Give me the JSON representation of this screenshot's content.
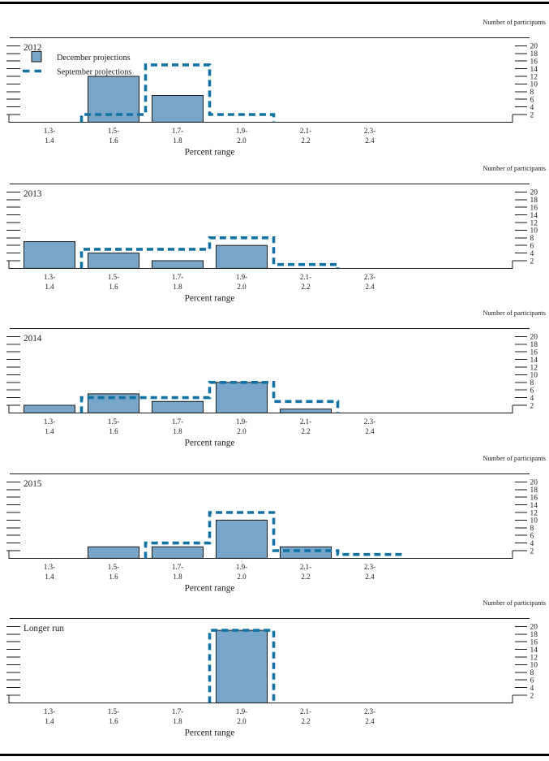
{
  "page": {
    "y_axis_title": "Number of participants",
    "x_axis_title": "Percent range",
    "legend": {
      "december_label": "December projections",
      "september_label": "September projections"
    },
    "colors": {
      "bar_fill": "#77a6ca",
      "bar_border": "#1a1a1a",
      "september_line": "#1173a5",
      "axis": "#1a1a1a",
      "text": "#1a1a1a",
      "rule": "#000000"
    },
    "y_ticks": [
      2,
      4,
      6,
      8,
      10,
      12,
      14,
      16,
      18,
      20
    ],
    "x_tick_labels": [
      [
        "1.3-",
        "1.4"
      ],
      [
        "1.5-",
        "1.6"
      ],
      [
        "1.7-",
        "1.8"
      ],
      [
        "1.9-",
        "2.0"
      ],
      [
        "2.1-",
        "2.2"
      ],
      [
        "2.3-",
        "2.4"
      ]
    ]
  },
  "chart_data": [
    {
      "type": "bar",
      "title": "2012",
      "categories": [
        "1.3-1.4",
        "1.5-1.6",
        "1.7-1.8",
        "1.9-2.0",
        "2.1-2.2",
        "2.3-2.4"
      ],
      "series": [
        {
          "name": "December projections",
          "style": "bar",
          "values": [
            0,
            12,
            7,
            0,
            0,
            0
          ]
        },
        {
          "name": "September projections",
          "style": "dashed-step",
          "values": [
            0,
            2,
            15,
            2,
            0,
            0
          ]
        }
      ],
      "xlabel": "Percent range",
      "ylabel": "Number of participants",
      "ylim": [
        0,
        22
      ],
      "yticks": [
        2,
        4,
        6,
        8,
        10,
        12,
        14,
        16,
        18,
        20
      ],
      "legend_visible": true
    },
    {
      "type": "bar",
      "title": "2013",
      "categories": [
        "1.3-1.4",
        "1.5-1.6",
        "1.7-1.8",
        "1.9-2.0",
        "2.1-2.2",
        "2.3-2.4"
      ],
      "series": [
        {
          "name": "December projections",
          "style": "bar",
          "values": [
            7,
            4,
            2,
            6,
            0,
            0
          ]
        },
        {
          "name": "September projections",
          "style": "dashed-step",
          "values": [
            0,
            5,
            5,
            8,
            1,
            0
          ]
        }
      ],
      "xlabel": "Percent range",
      "ylabel": "Number of participants",
      "ylim": [
        0,
        22
      ],
      "yticks": [
        2,
        4,
        6,
        8,
        10,
        12,
        14,
        16,
        18,
        20
      ],
      "legend_visible": false
    },
    {
      "type": "bar",
      "title": "2014",
      "categories": [
        "1.3-1.4",
        "1.5-1.6",
        "1.7-1.8",
        "1.9-2.0",
        "2.1-2.2",
        "2.3-2.4"
      ],
      "series": [
        {
          "name": "December projections",
          "style": "bar",
          "values": [
            2,
            5,
            3,
            8,
            1,
            0
          ]
        },
        {
          "name": "September projections",
          "style": "dashed-step",
          "values": [
            0,
            4,
            4,
            8,
            3,
            0
          ]
        }
      ],
      "xlabel": "Percent range",
      "ylabel": "Number of participants",
      "ylim": [
        0,
        22
      ],
      "yticks": [
        2,
        4,
        6,
        8,
        10,
        12,
        14,
        16,
        18,
        20
      ],
      "legend_visible": false
    },
    {
      "type": "bar",
      "title": "2015",
      "categories": [
        "1.3-1.4",
        "1.5-1.6",
        "1.7-1.8",
        "1.9-2.0",
        "2.1-2.2",
        "2.3-2.4"
      ],
      "series": [
        {
          "name": "December projections",
          "style": "bar",
          "values": [
            0,
            3,
            3,
            10,
            3,
            0
          ]
        },
        {
          "name": "September projections",
          "style": "dashed-step",
          "values": [
            0,
            0,
            4,
            12,
            2,
            1
          ]
        }
      ],
      "xlabel": "Percent range",
      "ylabel": "Number of participants",
      "ylim": [
        0,
        22
      ],
      "yticks": [
        2,
        4,
        6,
        8,
        10,
        12,
        14,
        16,
        18,
        20
      ],
      "legend_visible": false
    },
    {
      "type": "bar",
      "title": "Longer run",
      "categories": [
        "1.3-1.4",
        "1.5-1.6",
        "1.7-1.8",
        "1.9-2.0",
        "2.1-2.2",
        "2.3-2.4"
      ],
      "series": [
        {
          "name": "December projections",
          "style": "bar",
          "values": [
            0,
            0,
            0,
            19,
            0,
            0
          ]
        },
        {
          "name": "September projections",
          "style": "dashed-step",
          "values": [
            0,
            0,
            0,
            19,
            0,
            0
          ]
        }
      ],
      "xlabel": "Percent range",
      "ylabel": "Number of participants",
      "ylim": [
        0,
        22
      ],
      "yticks": [
        2,
        4,
        6,
        8,
        10,
        12,
        14,
        16,
        18,
        20
      ],
      "legend_visible": false
    }
  ]
}
